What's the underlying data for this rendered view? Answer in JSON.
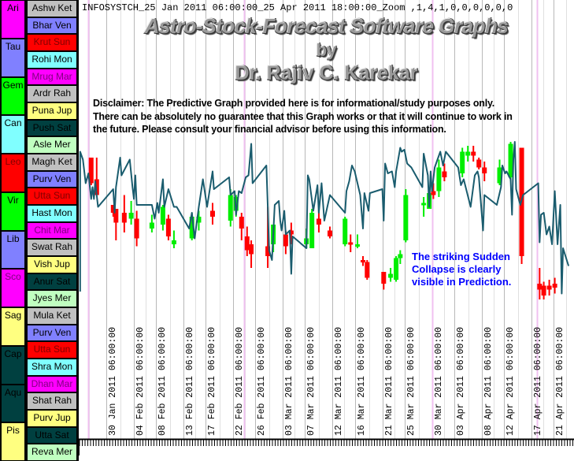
{
  "header": {
    "text": "INFOSYSTCH_25 Jan 2011 06:00:00_25 Apr 2011 18:00:00_Zoom ,1,4,1,0,0,0,0,0,0"
  },
  "titles": {
    "line1": "Astro-Stock-Forecast Software Graphs",
    "line2": "by",
    "line3": "Dr. Rajiv C. Karekar"
  },
  "disclaimer": {
    "lines": [
      "Disclaimer: The Predictive Graph provided here is for informational/study purposes only.",
      "There can be absolutely no guarantee that this Graph works or that it will continue to work in",
      "the future. Please consult your financial advisor before using this information."
    ]
  },
  "annotation": {
    "lines": [
      "The striking Sudden",
      "Collapse is clearly",
      "visible in Prediction."
    ],
    "color": "#0000ff"
  },
  "sidebar": {
    "signs": [
      {
        "label": "Ari",
        "color": "#ff00ff",
        "text": "#000000"
      },
      {
        "label": "Tau",
        "color": "#8080ff",
        "text": "#000000"
      },
      {
        "label": "Gem",
        "color": "#00ff00",
        "text": "#000000"
      },
      {
        "label": "Can",
        "color": "#80ffff",
        "text": "#000000"
      },
      {
        "label": "Leo",
        "color": "#ff0000",
        "text": "#800000"
      },
      {
        "label": "Vir",
        "color": "#00ff00",
        "text": "#000000"
      },
      {
        "label": "Lib",
        "color": "#8080ff",
        "text": "#000000"
      },
      {
        "label": "Sco",
        "color": "#ff00ff",
        "text": "#800080"
      },
      {
        "label": "Sag",
        "color": "#ffff80",
        "text": "#000000"
      },
      {
        "label": "Cap",
        "color": "#004040",
        "text": "#000000"
      },
      {
        "label": "Aqu",
        "color": "#004040",
        "text": "#000000"
      },
      {
        "label": "Pis",
        "color": "#ffff80",
        "text": "#000000"
      }
    ],
    "nakshatras": [
      {
        "label": "Ashw Ket",
        "color": "#c0c0c0",
        "text": "#000000"
      },
      {
        "label": "Bhar Ven",
        "color": "#8080ff",
        "text": "#000000"
      },
      {
        "label": "Krut Sun",
        "color": "#ff0000",
        "text": "#800000"
      },
      {
        "label": "Rohi Mon",
        "color": "#80ffff",
        "text": "#000000"
      },
      {
        "label": "Mrug Mar",
        "color": "#ff00ff",
        "text": "#800080"
      },
      {
        "label": "Ardr Rah",
        "color": "#c0c0c0",
        "text": "#000000"
      },
      {
        "label": "Puna Jup",
        "color": "#ffff80",
        "text": "#000000"
      },
      {
        "label": "Push Sat",
        "color": "#004040",
        "text": "#000000"
      },
      {
        "label": "Asle Mer",
        "color": "#c0ffc0",
        "text": "#000000"
      },
      {
        "label": "Magh Ket",
        "color": "#c0c0c0",
        "text": "#000000"
      },
      {
        "label": "Purv Ven",
        "color": "#8080ff",
        "text": "#000000"
      },
      {
        "label": "Utta Sun",
        "color": "#ff0000",
        "text": "#800000"
      },
      {
        "label": "Hast Mon",
        "color": "#80ffff",
        "text": "#000000"
      },
      {
        "label": "Chit Mar",
        "color": "#ff00ff",
        "text": "#800080"
      },
      {
        "label": "Swat Rah",
        "color": "#c0c0c0",
        "text": "#000000"
      },
      {
        "label": "Vish Jup",
        "color": "#ffff80",
        "text": "#000000"
      },
      {
        "label": "Anur Sat",
        "color": "#004040",
        "text": "#000000"
      },
      {
        "label": "Jyes Mer",
        "color": "#c0ffc0",
        "text": "#000000"
      },
      {
        "label": "Mula Ket",
        "color": "#c0c0c0",
        "text": "#000000"
      },
      {
        "label": "Purv Ven",
        "color": "#8080ff",
        "text": "#000000"
      },
      {
        "label": "Utta Sun",
        "color": "#ff0000",
        "text": "#800000"
      },
      {
        "label": "Shra Mon",
        "color": "#80ffff",
        "text": "#000000"
      },
      {
        "label": "Dhan Mar",
        "color": "#ff00ff",
        "text": "#800080"
      },
      {
        "label": "Shat Rah",
        "color": "#c0c0c0",
        "text": "#000000"
      },
      {
        "label": "Purv Jup",
        "color": "#ffff80",
        "text": "#000000"
      },
      {
        "label": "Utta Sat",
        "color": "#004040",
        "text": "#000000"
      },
      {
        "label": "Reva Mer",
        "color": "#c0ffc0",
        "text": "#000000"
      }
    ]
  },
  "chart_data": {
    "type": "line",
    "title": "",
    "xlabel": "",
    "ylabel": "",
    "xlim": [
      "2011-01-25 06:00",
      "2011-04-25 18:00"
    ],
    "ylim": [
      0,
      100
    ],
    "y_axis_printed": false,
    "grid": "vertical",
    "colors": {
      "line": "#1a5c6e",
      "up": "#00ee00",
      "down": "#ff0000",
      "grid": "#c0c0c0",
      "marker": "#f0c0f0"
    },
    "x_tick_labels": [
      "30 Jan 2011 06:00:00",
      "04 Feb 2011 06:00:00",
      "08 Feb 2011 06:00:00",
      "13 Feb 2011 06:00:00",
      "17 Feb 2011 06:00:00",
      "22 Feb 2011 06:00:00",
      "26 Feb 2011 06:00:00",
      "03 Mar 2011 06:00:00",
      "07 Mar 2011 06:00:00",
      "12 Mar 2011 06:00:00",
      "16 Mar 2011 06:00:00",
      "21 Mar 2011 06:00:00",
      "25 Mar 2011 06:00:00",
      "30 Mar 2011 06:00:00",
      "03 Apr 2011 06:00:00",
      "08 Apr 2011 06:00:00",
      "12 Apr 2011 06:00:00",
      "17 Apr 2011 06:00:00",
      "21 Apr 2011 06:00:00"
    ],
    "marker_lines": [
      "2011-01-27 00:00",
      "2011-02-24 06:00",
      "2011-03-30 06:00",
      "2011-04-18 06:00"
    ],
    "prediction_line": [
      [
        "2011-01-25 12:00",
        12
      ],
      [
        "2011-01-25 12:00",
        83
      ],
      [
        "2011-01-26 00:00",
        79
      ],
      [
        "2011-01-26 12:00",
        67
      ],
      [
        "2011-01-27 00:00",
        72
      ],
      [
        "2011-01-27 12:00",
        59
      ],
      [
        "2011-01-27 18:00",
        65
      ],
      [
        "2011-01-28 00:00",
        59
      ],
      [
        "2011-01-28 06:00",
        68
      ],
      [
        "2011-01-28 12:00",
        61
      ],
      [
        "2011-01-28 18:00",
        55
      ],
      [
        "2011-01-31 12:00",
        64
      ],
      [
        "2011-01-31 18:00",
        52
      ],
      [
        "2011-02-01 00:00",
        65
      ],
      [
        "2011-02-01 18:00",
        80
      ],
      [
        "2011-02-02 00:00",
        71
      ],
      [
        "2011-02-03 12:00",
        79
      ],
      [
        "2011-02-04 00:00",
        65
      ],
      [
        "2011-02-04 06:00",
        59
      ],
      [
        "2011-02-04 12:00",
        71
      ],
      [
        "2011-02-04 18:00",
        56
      ],
      [
        "2011-02-07 12:00",
        56
      ],
      [
        "2011-02-08 00:00",
        49
      ],
      [
        "2011-02-08 12:00",
        57
      ],
      [
        "2011-02-08 18:00",
        52
      ],
      [
        "2011-02-09 12:00",
        69
      ],
      [
        "2011-02-09 18:00",
        55
      ],
      [
        "2011-02-10 12:00",
        64
      ],
      [
        "2011-02-11 12:00",
        55
      ],
      [
        "2011-02-12 00:00",
        55
      ],
      [
        "2011-02-14 06:00",
        44
      ],
      [
        "2011-02-14 18:00",
        52
      ],
      [
        "2011-02-15 06:00",
        39
      ],
      [
        "2011-02-16 00:00",
        55
      ],
      [
        "2011-02-16 18:00",
        69
      ],
      [
        "2011-02-17 12:00",
        55
      ],
      [
        "2011-02-18 12:00",
        73
      ],
      [
        "2011-02-18 18:00",
        64
      ],
      [
        "2011-02-21 12:00",
        70
      ],
      [
        "2011-02-21 18:00",
        61
      ],
      [
        "2011-02-22 12:00",
        63
      ],
      [
        "2011-02-22 18:00",
        51
      ],
      [
        "2011-02-23 06:00",
        63
      ],
      [
        "2011-02-23 18:00",
        62
      ],
      [
        "2011-02-24 12:00",
        70
      ],
      [
        "2011-02-25 00:00",
        71
      ],
      [
        "2011-02-25 12:00",
        87
      ],
      [
        "2011-02-25 18:00",
        67
      ],
      [
        "2011-02-28 06:00",
        76
      ],
      [
        "2011-02-28 12:00",
        55
      ],
      [
        "2011-02-28 18:00",
        33
      ],
      [
        "2011-03-01 06:00",
        28
      ],
      [
        "2011-03-01 18:00",
        56
      ],
      [
        "2011-03-02 12:00",
        58
      ],
      [
        "2011-03-02 18:00",
        48
      ],
      [
        "2011-03-03 00:00",
        43
      ],
      [
        "2011-03-03 12:00",
        53
      ],
      [
        "2011-03-03 18:00",
        41
      ],
      [
        "2011-03-04 12:00",
        43
      ],
      [
        "2011-03-04 18:00",
        21
      ],
      [
        "2011-03-05 00:00",
        40
      ],
      [
        "2011-03-07 12:00",
        34
      ],
      [
        "2011-03-07 18:00",
        71
      ],
      [
        "2011-03-08 00:00",
        69
      ],
      [
        "2011-03-08 18:00",
        53
      ],
      [
        "2011-03-09 12:00",
        66
      ],
      [
        "2011-03-09 18:00",
        52
      ],
      [
        "2011-03-10 06:00",
        67
      ],
      [
        "2011-03-10 18:00",
        48
      ],
      [
        "2011-03-11 18:00",
        61
      ],
      [
        "2011-03-14 12:00",
        52
      ],
      [
        "2011-03-14 18:00",
        63
      ],
      [
        "2011-03-15 06:00",
        68
      ],
      [
        "2011-03-15 18:00",
        76
      ],
      [
        "2011-03-16 06:00",
        73
      ],
      [
        "2011-03-17 06:00",
        61
      ],
      [
        "2011-03-17 18:00",
        44
      ],
      [
        "2011-03-18 00:00",
        62
      ],
      [
        "2011-03-18 18:00",
        53
      ],
      [
        "2011-03-19 00:00",
        62
      ],
      [
        "2011-03-21 06:00",
        64
      ],
      [
        "2011-03-21 12:00",
        48
      ],
      [
        "2011-03-21 18:00",
        77
      ],
      [
        "2011-03-22 06:00",
        72
      ],
      [
        "2011-03-23 00:00",
        73
      ],
      [
        "2011-03-23 12:00",
        65
      ],
      [
        "2011-03-23 18:00",
        73
      ],
      [
        "2011-03-24 12:00",
        85
      ],
      [
        "2011-03-24 18:00",
        83
      ],
      [
        "2011-03-25 06:00",
        84
      ],
      [
        "2011-03-25 18:00",
        77
      ],
      [
        "2011-03-26 12:00",
        75
      ],
      [
        "2011-03-28 12:00",
        65
      ],
      [
        "2011-03-28 18:00",
        82
      ],
      [
        "2011-03-29 12:00",
        71
      ],
      [
        "2011-03-29 18:00",
        55
      ],
      [
        "2011-03-30 00:00",
        73
      ],
      [
        "2011-03-30 06:00",
        63
      ],
      [
        "2011-03-30 18:00",
        75
      ],
      [
        "2011-03-31 06:00",
        79
      ],
      [
        "2011-03-31 18:00",
        83
      ],
      [
        "2011-04-01 06:00",
        76
      ],
      [
        "2011-04-01 18:00",
        83
      ],
      [
        "2011-04-04 00:00",
        75
      ],
      [
        "2011-04-04 12:00",
        66
      ],
      [
        "2011-04-05 00:00",
        69
      ],
      [
        "2011-04-06 06:00",
        55
      ],
      [
        "2011-04-07 00:00",
        71
      ],
      [
        "2011-04-07 12:00",
        73
      ],
      [
        "2011-04-07 18:00",
        70
      ],
      [
        "2011-04-08 12:00",
        43
      ],
      [
        "2011-04-08 18:00",
        61
      ],
      [
        "2011-04-11 00:00",
        56
      ],
      [
        "2011-04-11 18:00",
        65
      ],
      [
        "2011-04-12 00:00",
        76
      ],
      [
        "2011-04-12 12:00",
        72
      ],
      [
        "2011-04-12 18:00",
        73
      ],
      [
        "2011-04-13 12:00",
        69
      ],
      [
        "2011-04-13 18:00",
        51
      ],
      [
        "2011-04-14 00:00",
        79
      ],
      [
        "2011-04-14 06:00",
        88
      ],
      [
        "2011-04-14 12:00",
        64
      ],
      [
        "2011-04-15 06:00",
        56
      ],
      [
        "2011-04-15 18:00",
        61
      ],
      [
        "2011-04-18 12:00",
        67
      ],
      [
        "2011-04-18 18:00",
        37
      ],
      [
        "2011-04-19 00:00",
        51
      ],
      [
        "2011-04-19 12:00",
        52
      ],
      [
        "2011-04-20 00:00",
        41
      ],
      [
        "2011-04-20 12:00",
        45
      ],
      [
        "2011-04-21 00:00",
        36
      ],
      [
        "2011-04-21 12:00",
        63
      ],
      [
        "2011-04-22 00:00",
        36
      ],
      [
        "2011-04-22 12:00",
        56
      ],
      [
        "2011-04-22 18:00",
        11
      ],
      [
        "2011-04-23 00:00",
        34
      ],
      [
        "2011-04-24 00:00",
        25
      ]
    ],
    "candles_fields": [
      "time",
      "open",
      "high",
      "low",
      "close"
    ],
    "candles": [
      [
        "2011-01-27 12:00",
        80,
        80,
        66,
        67
      ],
      [
        "2011-01-28 12:00",
        69,
        80,
        61,
        61
      ],
      [
        "2011-01-31 12:00",
        56,
        56,
        50,
        52
      ],
      [
        "2011-02-01 00:00",
        54,
        54,
        38,
        47
      ],
      [
        "2011-02-02 12:00",
        52,
        61,
        42,
        47
      ],
      [
        "2011-02-03 18:00",
        49,
        58,
        46,
        52
      ],
      [
        "2011-02-04 18:00",
        49,
        53,
        35,
        39
      ],
      [
        "2011-02-07 12:00",
        44,
        51,
        42,
        47
      ],
      [
        "2011-02-09 12:00",
        46,
        56,
        43,
        55
      ],
      [
        "2011-02-10 12:00",
        49,
        51,
        38,
        40
      ],
      [
        "2011-02-11 12:00",
        36,
        43,
        34,
        38
      ],
      [
        "2011-02-14 18:00",
        39,
        52,
        38,
        50
      ],
      [
        "2011-02-16 00:00",
        47,
        53,
        43,
        50
      ],
      [
        "2011-02-18 12:00",
        53,
        57,
        46,
        50
      ],
      [
        "2011-02-21 18:00",
        48,
        64,
        45,
        61
      ],
      [
        "2011-02-22 18:00",
        53,
        61,
        50,
        60
      ],
      [
        "2011-02-23 18:00",
        50,
        52,
        38,
        44
      ],
      [
        "2011-02-24 18:00",
        40,
        45,
        30,
        33
      ],
      [
        "2011-02-25 12:00",
        36,
        38,
        24,
        31
      ],
      [
        "2011-02-28 12:00",
        35,
        55,
        24,
        30
      ],
      [
        "2011-03-01 12:00",
        36,
        46,
        32,
        46
      ],
      [
        "2011-03-03 18:00",
        41,
        43,
        31,
        35
      ],
      [
        "2011-03-04 18:00",
        43,
        47,
        36,
        41
      ],
      [
        "2011-03-07 12:00",
        36,
        44,
        34,
        39
      ],
      [
        "2011-03-08 12:00",
        34,
        54,
        34,
        52
      ],
      [
        "2011-03-09 18:00",
        49,
        54,
        42,
        46
      ],
      [
        "2011-03-11 18:00",
        43,
        45,
        39,
        40
      ],
      [
        "2011-03-14 12:00",
        36,
        50,
        35,
        49
      ],
      [
        "2011-03-15 12:00",
        37,
        41,
        32,
        36
      ],
      [
        "2011-03-16 18:00",
        35,
        41,
        34,
        36
      ],
      [
        "2011-03-17 18:00",
        28,
        30,
        25,
        27
      ],
      [
        "2011-03-18 12:00",
        27,
        28,
        18,
        19
      ],
      [
        "2011-03-21 12:00",
        22,
        22,
        13,
        16
      ],
      [
        "2011-03-22 18:00",
        19,
        24,
        17,
        21
      ],
      [
        "2011-03-23 18:00",
        18,
        30,
        17,
        29
      ],
      [
        "2011-03-24 12:00",
        29,
        33,
        26,
        31
      ],
      [
        "2011-03-25 12:00",
        38,
        64,
        37,
        61
      ],
      [
        "2011-03-28 18:00",
        56,
        60,
        50,
        57
      ],
      [
        "2011-03-29 18:00",
        54,
        63,
        54,
        62
      ],
      [
        "2011-03-30 12:00",
        63,
        67,
        59,
        61
      ],
      [
        "2011-03-31 12:00",
        63,
        79,
        60,
        75
      ],
      [
        "2011-04-01 12:00",
        73,
        77,
        68,
        70
      ],
      [
        "2011-04-04 18:00",
        72,
        85,
        70,
        83
      ],
      [
        "2011-04-05 18:00",
        81,
        86,
        78,
        83
      ],
      [
        "2011-04-06 18:00",
        83,
        86,
        78,
        81
      ],
      [
        "2011-04-07 18:00",
        79,
        80,
        74,
        75
      ],
      [
        "2011-04-08 18:00",
        75,
        78,
        68,
        72
      ],
      [
        "2011-04-11 12:00",
        67,
        79,
        66,
        75
      ],
      [
        "2011-04-13 12:00",
        70,
        88,
        68,
        87
      ],
      [
        "2011-04-15 12:00",
        85,
        85,
        26,
        30
      ],
      [
        "2011-04-18 18:00",
        16,
        24,
        8,
        13
      ],
      [
        "2011-04-19 12:00",
        15,
        17,
        8,
        10
      ],
      [
        "2011-04-20 12:00",
        15,
        18,
        10,
        13
      ],
      [
        "2011-04-21 12:00",
        16,
        19,
        11,
        14
      ]
    ]
  }
}
